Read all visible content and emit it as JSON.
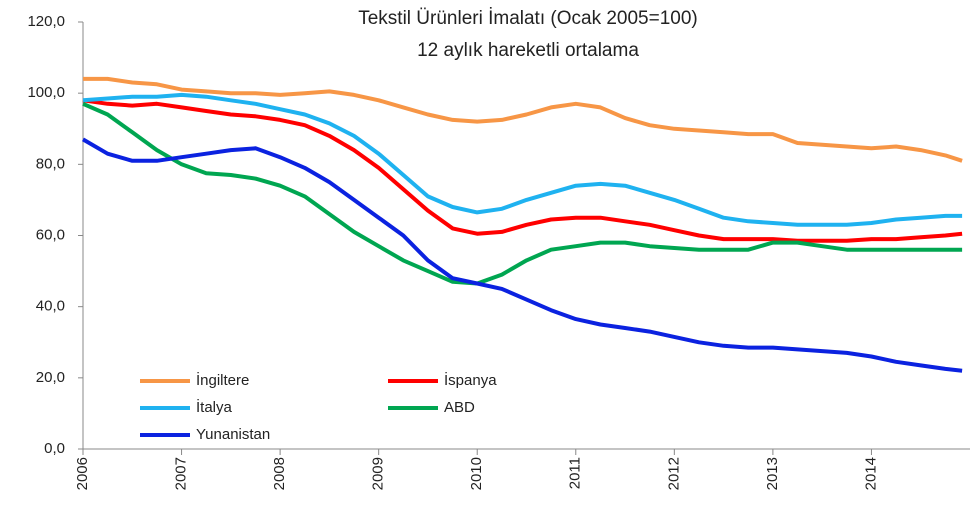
{
  "chart_data": {
    "type": "line",
    "title": "Tekstil Ürünleri İmalatı (Ocak 2005=100)",
    "subtitle": "12 aylık hareketli ortalama",
    "x": [
      2006,
      2006.25,
      2006.5,
      2006.75,
      2007,
      2007.25,
      2007.5,
      2007.75,
      2008,
      2008.25,
      2008.5,
      2008.75,
      2009,
      2009.25,
      2009.5,
      2009.75,
      2010,
      2010.25,
      2010.5,
      2010.75,
      2011,
      2011.25,
      2011.5,
      2011.75,
      2012,
      2012.25,
      2012.5,
      2012.75,
      2013,
      2013.25,
      2013.5,
      2013.75,
      2014,
      2014.25,
      2014.5,
      2014.75,
      2014.92
    ],
    "series": [
      {
        "name": "İngiltere",
        "color": "#f79646",
        "values": [
          104,
          104,
          103,
          102.5,
          101,
          100.5,
          100,
          100,
          99.5,
          100,
          100.5,
          99.5,
          98,
          96,
          94,
          92.5,
          92,
          92.5,
          94,
          96,
          97,
          96,
          93,
          91,
          90,
          89.5,
          89,
          88.5,
          88.5,
          86,
          85.5,
          85,
          84.5,
          85,
          84,
          82.5,
          81
        ]
      },
      {
        "name": "İspanya",
        "color": "#ff0000",
        "values": [
          98,
          97,
          96.5,
          97,
          96,
          95,
          94,
          93.5,
          92.5,
          91,
          88,
          84,
          79,
          73,
          67,
          62,
          60.5,
          61,
          63,
          64.5,
          65,
          65,
          64,
          63,
          61.5,
          60,
          59,
          59,
          59,
          58.5,
          58.5,
          58.5,
          59,
          59,
          59.5,
          60,
          60.5
        ]
      },
      {
        "name": "İtalya",
        "color": "#1fb2f0",
        "values": [
          98,
          98.5,
          99,
          99,
          99.5,
          99,
          98,
          97,
          95.5,
          94,
          91.5,
          88,
          83,
          77,
          71,
          68,
          66.5,
          67.5,
          70,
          72,
          74,
          74.5,
          74,
          72,
          70,
          67.5,
          65,
          64,
          63.5,
          63,
          63,
          63,
          63.5,
          64.5,
          65,
          65.5,
          65.5
        ]
      },
      {
        "name": "ABD",
        "color": "#00a651",
        "values": [
          97,
          94,
          89,
          84,
          80,
          77.5,
          77,
          76,
          74,
          71,
          66,
          61,
          57,
          53,
          50,
          47,
          46.5,
          49,
          53,
          56,
          57,
          58,
          58,
          57,
          56.5,
          56,
          56,
          56,
          58,
          58,
          57,
          56,
          56,
          56,
          56,
          56,
          56
        ]
      },
      {
        "name": "Yunanistan",
        "color": "#0b22e0",
        "values": [
          87,
          83,
          81,
          81,
          82,
          83,
          84,
          84.5,
          82,
          79,
          75,
          70,
          65,
          60,
          53,
          48,
          46.5,
          45,
          42,
          39,
          36.5,
          35,
          34,
          33,
          31.5,
          30,
          29,
          28.5,
          28.5,
          28,
          27.5,
          27,
          26,
          24.5,
          23.5,
          22.5,
          22
        ]
      }
    ],
    "xlim": [
      2006,
      2015
    ],
    "xticks": [
      2006,
      2007,
      2008,
      2009,
      2010,
      2011,
      2012,
      2013,
      2014
    ],
    "ylim": [
      0,
      120
    ],
    "yticks": [
      {
        "value": 0,
        "label": "0,0"
      },
      {
        "value": 20,
        "label": "20,0"
      },
      {
        "value": 40,
        "label": "40,0"
      },
      {
        "value": 60,
        "label": "60,0"
      },
      {
        "value": 80,
        "label": "80,0"
      },
      {
        "value": 100,
        "label": "100,0"
      },
      {
        "value": 120,
        "label": "120,0"
      }
    ],
    "grid": false
  }
}
